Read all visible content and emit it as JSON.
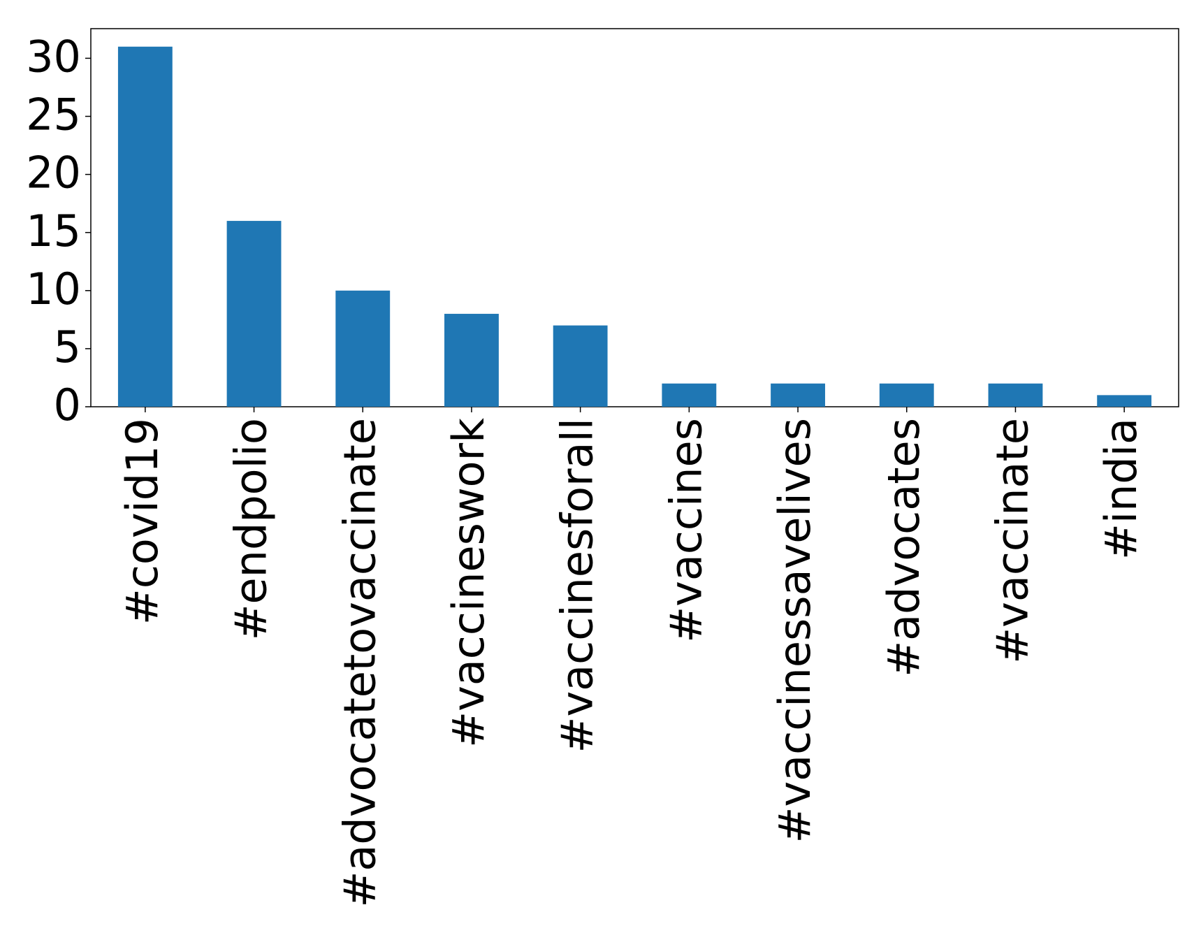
{
  "chart_data": {
    "type": "bar",
    "categories": [
      "#covid19",
      "#endpolio",
      "#advocatetovaccinate",
      "#vaccineswork",
      "#vaccinesforall",
      "#vaccines",
      "#vaccinessavelives",
      "#advocates",
      "#vaccinate",
      "#india"
    ],
    "values": [
      31,
      16,
      10,
      8,
      7,
      2,
      2,
      2,
      2,
      1
    ],
    "color": "#1f77b4",
    "ylim": [
      0,
      32.55
    ],
    "yticks": [
      0,
      5,
      10,
      15,
      20,
      25,
      30
    ],
    "grid": false
  }
}
